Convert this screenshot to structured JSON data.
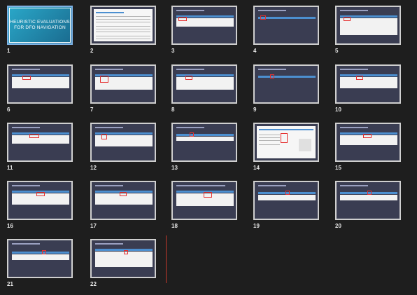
{
  "title_slide_text_line1": "HEURISTIC EVALUATIONS",
  "title_slide_text_line2": "FOR DFO NAVIGATION",
  "slides": [
    {
      "num": "1"
    },
    {
      "num": "2"
    },
    {
      "num": "3"
    },
    {
      "num": "4"
    },
    {
      "num": "5"
    },
    {
      "num": "6"
    },
    {
      "num": "7"
    },
    {
      "num": "8"
    },
    {
      "num": "9"
    },
    {
      "num": "10"
    },
    {
      "num": "11"
    },
    {
      "num": "12"
    },
    {
      "num": "13"
    },
    {
      "num": "14"
    },
    {
      "num": "15"
    },
    {
      "num": "16"
    },
    {
      "num": "17"
    },
    {
      "num": "18"
    },
    {
      "num": "19"
    },
    {
      "num": "20"
    },
    {
      "num": "21"
    },
    {
      "num": "22"
    }
  ],
  "colors": {
    "background": "#1e1e1e",
    "slide_bg": "#3a3d52",
    "title_slide_bg": "#2aa8c9",
    "highlight_box": "#e53030",
    "selected_border": "#7fb2e5"
  }
}
